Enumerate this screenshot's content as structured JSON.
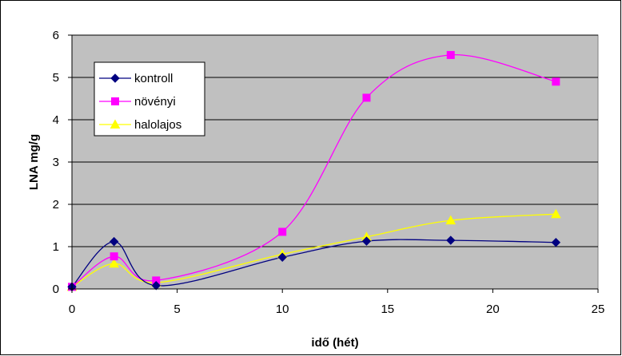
{
  "chart_data": {
    "type": "line",
    "xlabel": "idő (hét)",
    "ylabel": "LNA mg/g",
    "xlim": [
      0,
      25
    ],
    "ylim": [
      0,
      6
    ],
    "xticks": [
      "0",
      "5",
      "10",
      "15",
      "20",
      "25"
    ],
    "yticks": [
      "0",
      "1",
      "2",
      "3",
      "4",
      "5",
      "6"
    ],
    "grid": "horizontal",
    "plot_background": "#c0c0c0",
    "legend_position": "top-left",
    "series": [
      {
        "name": "kontroll",
        "color": "#000080",
        "marker": "diamond",
        "x": [
          0,
          2,
          4,
          10,
          14,
          18,
          23
        ],
        "y": [
          0.05,
          1.12,
          0.08,
          0.75,
          1.13,
          1.15,
          1.1
        ]
      },
      {
        "name": "növényi",
        "color": "#ff00ff",
        "marker": "square",
        "x": [
          0,
          2,
          4,
          10,
          14,
          18,
          23
        ],
        "y": [
          0.05,
          0.77,
          0.2,
          1.35,
          4.52,
          5.53,
          4.9
        ]
      },
      {
        "name": "halolajos",
        "color": "#ffff00",
        "marker": "triangle",
        "x": [
          0,
          2,
          4,
          10,
          14,
          18,
          23
        ],
        "y": [
          0.05,
          0.6,
          0.15,
          0.82,
          1.23,
          1.62,
          1.77
        ]
      }
    ]
  }
}
